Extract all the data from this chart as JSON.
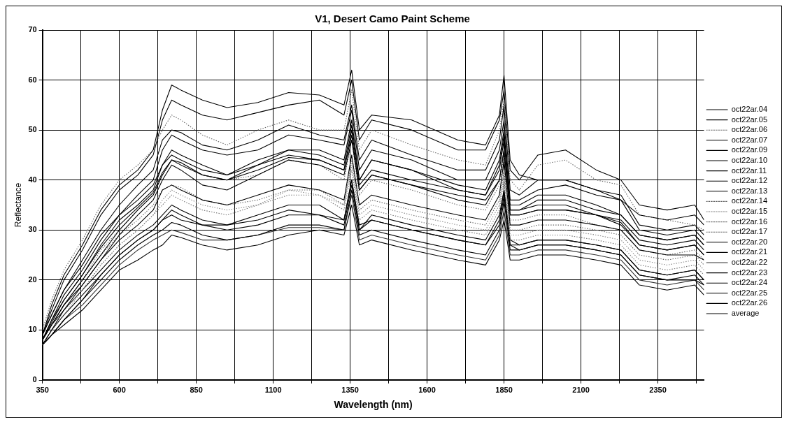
{
  "chart_data": {
    "type": "line",
    "title": "V1, Desert Camo Paint Scheme",
    "xlabel": "Wavelength (nm)",
    "ylabel": "Reflectance",
    "x": [
      350,
      380,
      420,
      480,
      540,
      600,
      660,
      710,
      740,
      770,
      800,
      870,
      950,
      1050,
      1150,
      1250,
      1330,
      1355,
      1380,
      1420,
      1550,
      1700,
      1790,
      1835,
      1850,
      1870,
      1900,
      1960,
      2050,
      2150,
      2230,
      2290,
      2380,
      2470,
      2500
    ],
    "xlim": [
      350,
      2500
    ],
    "xticks": [
      350,
      {
        "value": 475,
        "label": null
      },
      600,
      {
        "value": 725,
        "label": null
      },
      850,
      {
        "value": 975,
        "label": null
      },
      1100,
      {
        "value": 1225,
        "label": null
      },
      1350,
      {
        "value": 1475,
        "label": null
      },
      1600,
      {
        "value": 1725,
        "label": null
      },
      1850,
      {
        "value": 1975,
        "label": null
      },
      2100,
      {
        "value": 2225,
        "label": null
      },
      2350,
      {
        "value": 2475,
        "label": null
      }
    ],
    "ylim": [
      0,
      70
    ],
    "yticks": [
      0,
      10,
      20,
      30,
      40,
      50,
      60,
      70
    ],
    "grid": true,
    "legend": "right",
    "marker": "none",
    "series": [
      {
        "name": "oct22ar.04",
        "color": "#000000",
        "line_style": "solid",
        "values": [
          9,
          15,
          21,
          27,
          34,
          39,
          42,
          46,
          54,
          59,
          58,
          56,
          54.5,
          55.5,
          57.5,
          57,
          55,
          62,
          50,
          53,
          52,
          48,
          47,
          53,
          61,
          44,
          41,
          40,
          40,
          38,
          36,
          33,
          32,
          33,
          31
        ]
      },
      {
        "name": "oct22ar.05",
        "color": "#000000",
        "line_style": "solid",
        "values": [
          9,
          14,
          20,
          26,
          33,
          38,
          41,
          45,
          52,
          56,
          55,
          53,
          52,
          53.5,
          55,
          56,
          53,
          60,
          48,
          52,
          50,
          46,
          46,
          52,
          58,
          42,
          40,
          45,
          46,
          42,
          40,
          35,
          34,
          35,
          32
        ]
      },
      {
        "name": "oct22ar.06",
        "color": "#666666",
        "line_style": "dotted",
        "values": [
          10,
          16,
          22,
          28,
          35,
          40,
          43,
          46,
          50,
          53,
          52,
          49,
          47,
          50,
          52,
          50,
          50,
          58,
          46,
          50,
          47,
          44,
          43,
          50,
          56,
          40,
          38,
          43,
          44,
          40,
          39,
          33,
          32,
          31,
          30
        ]
      },
      {
        "name": "oct22ar.07",
        "color": "#000000",
        "line_style": "solid",
        "values": [
          9,
          13,
          18,
          24,
          30,
          35,
          39,
          42,
          48,
          50,
          49.5,
          47,
          46,
          48,
          51,
          49,
          48,
          55,
          44,
          48,
          45,
          42,
          42,
          48,
          55,
          38,
          37,
          40,
          40,
          38,
          37,
          31,
          30,
          31,
          29
        ]
      },
      {
        "name": "oct22ar.09",
        "color": "#000000",
        "line_style": "solid",
        "values": [
          8,
          12,
          17,
          22,
          28,
          33,
          37,
          40,
          46,
          49,
          48,
          46,
          45,
          46,
          49,
          48,
          47,
          54,
          42,
          46,
          44,
          40,
          40,
          46,
          52,
          36,
          36,
          38,
          39,
          37,
          36,
          30,
          29,
          30,
          28
        ]
      },
      {
        "name": "oct22ar.10",
        "color": "#000000",
        "line_style": "solid",
        "values": [
          8,
          12,
          16,
          21,
          27,
          32,
          35,
          38,
          43,
          46,
          45,
          43,
          41,
          44,
          46,
          46,
          44,
          52,
          40,
          44,
          42,
          39,
          38,
          44,
          50,
          35,
          35,
          37,
          37,
          35,
          33,
          29,
          28,
          29,
          27
        ]
      },
      {
        "name": "oct22ar.11",
        "color": "#000000",
        "line_style": "solid",
        "values": [
          8,
          11,
          15,
          20,
          25,
          30,
          34,
          37,
          41,
          44,
          43.5,
          41,
          40,
          43,
          45,
          44,
          42,
          50,
          39,
          42,
          40,
          38,
          37,
          42,
          48,
          34,
          34,
          35,
          35,
          33,
          32,
          28,
          27,
          28,
          26
        ]
      },
      {
        "name": "oct22ar.12",
        "color": "#000000",
        "line_style": "solid",
        "values": [
          8,
          11,
          15,
          19,
          24,
          29,
          33,
          36,
          40,
          43,
          42,
          39,
          38,
          41,
          44,
          43,
          41,
          48,
          38,
          41,
          39,
          37,
          36,
          40,
          46,
          33,
          33,
          34,
          34,
          33,
          31,
          27,
          26,
          27,
          25
        ]
      },
      {
        "name": "oct22ar.13",
        "color": "#000000",
        "line_style": "solid",
        "values": [
          7,
          10,
          14,
          19,
          24,
          28,
          31,
          34,
          38,
          39,
          38,
          36,
          35,
          37,
          39,
          38,
          36,
          45,
          35,
          37,
          35,
          33,
          32,
          37,
          44,
          31,
          31,
          32,
          32,
          31,
          30,
          26,
          25,
          25,
          24
        ]
      },
      {
        "name": "oct22ar.14",
        "color": "#666666",
        "line_style": "dotted",
        "values": [
          8,
          11,
          15,
          20,
          25,
          29,
          32,
          35,
          38,
          39,
          38.5,
          36,
          35,
          36,
          38,
          38,
          35,
          44,
          34,
          36,
          34,
          32,
          31,
          36,
          42,
          30,
          30,
          31,
          31,
          30,
          29,
          25,
          24,
          25,
          23
        ]
      },
      {
        "name": "oct22ar.15",
        "color": "#888888",
        "line_style": "dotted",
        "values": [
          7,
          10,
          14,
          18,
          23,
          27,
          30,
          33,
          36,
          38,
          37,
          35,
          34,
          35,
          38,
          37,
          35,
          43,
          33,
          35,
          33,
          31,
          30,
          35,
          41,
          29,
          29,
          30,
          30,
          29,
          28,
          24,
          23,
          24,
          22
        ]
      },
      {
        "name": "oct22ar.16",
        "color": "#777777",
        "line_style": "dotted",
        "values": [
          7,
          10,
          13,
          18,
          23,
          27,
          30,
          33,
          35,
          37,
          36,
          34,
          33,
          35,
          37,
          37,
          34,
          42,
          32,
          34,
          32,
          30,
          29,
          34,
          40,
          28,
          28,
          29,
          29,
          28,
          27,
          23,
          22,
          23,
          21
        ]
      },
      {
        "name": "oct22ar.17",
        "color": "#666666",
        "line_style": "dotted",
        "values": [
          8,
          11,
          15,
          20,
          26,
          30,
          34,
          37,
          41,
          44,
          43,
          41,
          40,
          41,
          44,
          43,
          40,
          48,
          37,
          40,
          38,
          35,
          34,
          39,
          45,
          32,
          32,
          33,
          33,
          31,
          30,
          26,
          25,
          26,
          24
        ]
      },
      {
        "name": "oct22ar.20",
        "color": "#000000",
        "line_style": "solid",
        "values": [
          7,
          9,
          12,
          16,
          21,
          25,
          28,
          30,
          32,
          34,
          33,
          31,
          31,
          32,
          34,
          33,
          32,
          40,
          31,
          32,
          30,
          28,
          27,
          32,
          38,
          27,
          27,
          28,
          28,
          27,
          26,
          22,
          21,
          22,
          20
        ]
      },
      {
        "name": "oct22ar.21",
        "color": "#000000",
        "line_style": "solid",
        "values": [
          7,
          9,
          12,
          16,
          20,
          24,
          27,
          29,
          30,
          31.5,
          31,
          29,
          28,
          29,
          31,
          31,
          30,
          38,
          29,
          30,
          28,
          26,
          25,
          30,
          36,
          26,
          26,
          27,
          27,
          26,
          25,
          21,
          20,
          20,
          19
        ]
      },
      {
        "name": "oct22ar.22",
        "color": "#333333",
        "line_style": "solid",
        "values": [
          7,
          9,
          12,
          15,
          19,
          23,
          26,
          28,
          29,
          30,
          29.5,
          28,
          28,
          29,
          30.5,
          30.5,
          30,
          37,
          28,
          29,
          27,
          25,
          24,
          29,
          34,
          25,
          25,
          26,
          26,
          25,
          24,
          20,
          19,
          20,
          18
        ]
      },
      {
        "name": "oct22ar.23",
        "color": "#000000",
        "line_style": "solid",
        "values": [
          7,
          9,
          11,
          14,
          18,
          22,
          24,
          26,
          27,
          29,
          28.5,
          27,
          26,
          27,
          29,
          30,
          29,
          35,
          27,
          28,
          26,
          24,
          23,
          28,
          32,
          24,
          24,
          25,
          25,
          24,
          23,
          19,
          18,
          19,
          17
        ]
      },
      {
        "name": "oct22ar.24",
        "color": "#000000",
        "line_style": "solid",
        "values": [
          8,
          11,
          14,
          18,
          22,
          26,
          29,
          31,
          33,
          35,
          34,
          32,
          31,
          33,
          35,
          35,
          32,
          40,
          30,
          33,
          31,
          29,
          28,
          33,
          38,
          28,
          27,
          28,
          28,
          27,
          26,
          22,
          21,
          22,
          20
        ]
      },
      {
        "name": "oct22ar.25",
        "color": "#000000",
        "line_style": "solid",
        "values": [
          7,
          10,
          13,
          17,
          21,
          25,
          28,
          30,
          32,
          33,
          32,
          31,
          30,
          31,
          33,
          33,
          31,
          39,
          30,
          32,
          30,
          28,
          27,
          31,
          37,
          27,
          26,
          27,
          27,
          26,
          25,
          21,
          20,
          21,
          19
        ]
      },
      {
        "name": "oct22ar.26",
        "color": "#000000",
        "line_style": "solid",
        "values": [
          9,
          13,
          18,
          23,
          29,
          33,
          36,
          39,
          43,
          45,
          44,
          42,
          41,
          43,
          46,
          45,
          43,
          51,
          40,
          44,
          42,
          38,
          37,
          43,
          49,
          34,
          34,
          36,
          36,
          34,
          33,
          29,
          28,
          29,
          27
        ]
      },
      {
        "name": "average",
        "color": "#000000",
        "line_style": "solid",
        "values": [
          8,
          11.5,
          16,
          21,
          26.5,
          31,
          34.5,
          37.5,
          41.5,
          44,
          43,
          41,
          40,
          42,
          44.5,
          44,
          42,
          49,
          38,
          41,
          39,
          36,
          35,
          40,
          46,
          33,
          33,
          34,
          34,
          33,
          31.5,
          27,
          26,
          27,
          25
        ]
      }
    ]
  }
}
